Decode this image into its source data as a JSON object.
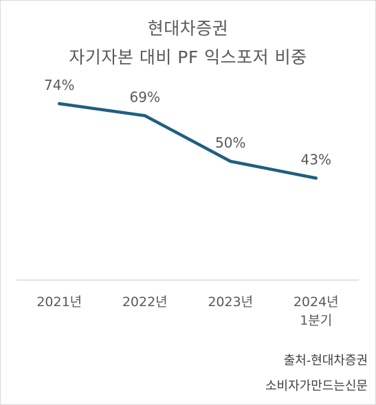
{
  "chart_data": {
    "type": "line",
    "title_lines": [
      "현대차증권",
      "자기자본 대비 PF 익스포저 비중"
    ],
    "categories": [
      "2021년",
      "2022년",
      "2023년",
      "2024년 1분기"
    ],
    "series": [
      {
        "values": [
          74,
          69,
          50,
          43
        ]
      }
    ],
    "data_labels": [
      "74%",
      "69%",
      "50%",
      "43%"
    ],
    "ylim": [
      0,
      100
    ],
    "grid": false,
    "line_color": "#1f5f80",
    "axis_color": "#d9d9d9"
  },
  "source": {
    "line1": "출처-현대차증권",
    "line2": "소비자가만드는신문"
  }
}
